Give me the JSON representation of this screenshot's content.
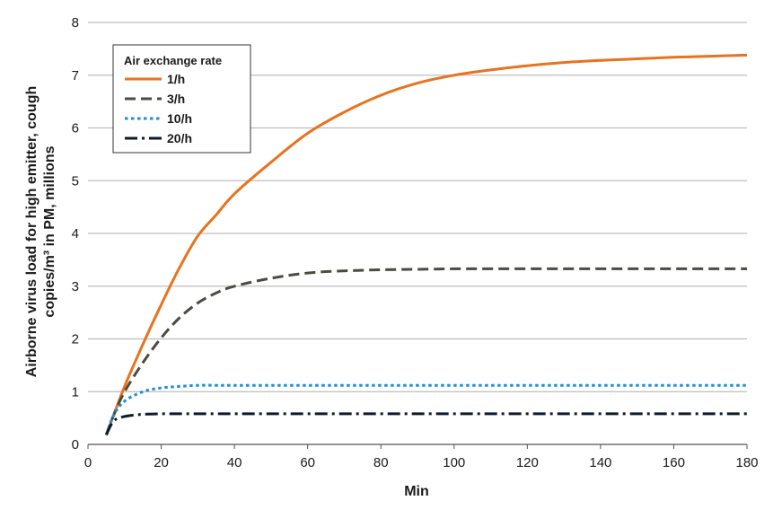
{
  "chart_data": {
    "type": "line",
    "title": "",
    "xlabel": "Min",
    "ylabel_lines": [
      "Airborne virus load for high emitter, cough",
      "copies/m³ in PM, millions"
    ],
    "xlim": [
      0,
      180
    ],
    "ylim": [
      0,
      8
    ],
    "xticks": [
      "0",
      "20",
      "40",
      "60",
      "80",
      "100",
      "120",
      "140",
      "160",
      "180"
    ],
    "yticks": [
      "0",
      "1",
      "2",
      "3",
      "4",
      "5",
      "6",
      "7",
      "8"
    ],
    "grid": "horizontal",
    "legend": {
      "title": "Air exchange rate",
      "placement": "top-left"
    },
    "x": [
      5,
      7,
      10,
      15,
      20,
      25,
      30,
      35,
      40,
      50,
      60,
      70,
      80,
      90,
      100,
      110,
      120,
      130,
      140,
      150,
      160,
      170,
      180
    ],
    "series": [
      {
        "name": "1/h",
        "color": "#e8731e",
        "dash": "solid",
        "values": [
          0.18,
          0.55,
          1.1,
          1.9,
          2.65,
          3.35,
          3.95,
          4.35,
          4.75,
          5.35,
          5.9,
          6.3,
          6.62,
          6.85,
          7.0,
          7.1,
          7.18,
          7.24,
          7.28,
          7.31,
          7.34,
          7.36,
          7.38
        ]
      },
      {
        "name": "3/h",
        "color": "#4d4a3f",
        "dash": "dash",
        "values": [
          0.18,
          0.55,
          1.0,
          1.55,
          2.02,
          2.4,
          2.68,
          2.87,
          3.0,
          3.15,
          3.25,
          3.29,
          3.31,
          3.32,
          3.33,
          3.33,
          3.33,
          3.33,
          3.33,
          3.33,
          3.33,
          3.33,
          3.33
        ]
      },
      {
        "name": "10/h",
        "color": "#1f8fd6",
        "dash": "dot",
        "values": [
          0.18,
          0.55,
          0.82,
          1.0,
          1.07,
          1.1,
          1.12,
          1.12,
          1.12,
          1.12,
          1.12,
          1.12,
          1.12,
          1.12,
          1.12,
          1.12,
          1.12,
          1.12,
          1.12,
          1.12,
          1.12,
          1.12,
          1.12
        ]
      },
      {
        "name": "20/h",
        "color": "#0f1a2e",
        "dash": "dashdot",
        "values": [
          0.18,
          0.44,
          0.53,
          0.57,
          0.58,
          0.58,
          0.58,
          0.58,
          0.58,
          0.58,
          0.58,
          0.58,
          0.58,
          0.58,
          0.58,
          0.58,
          0.58,
          0.58,
          0.58,
          0.58,
          0.58,
          0.58,
          0.58
        ]
      }
    ]
  }
}
